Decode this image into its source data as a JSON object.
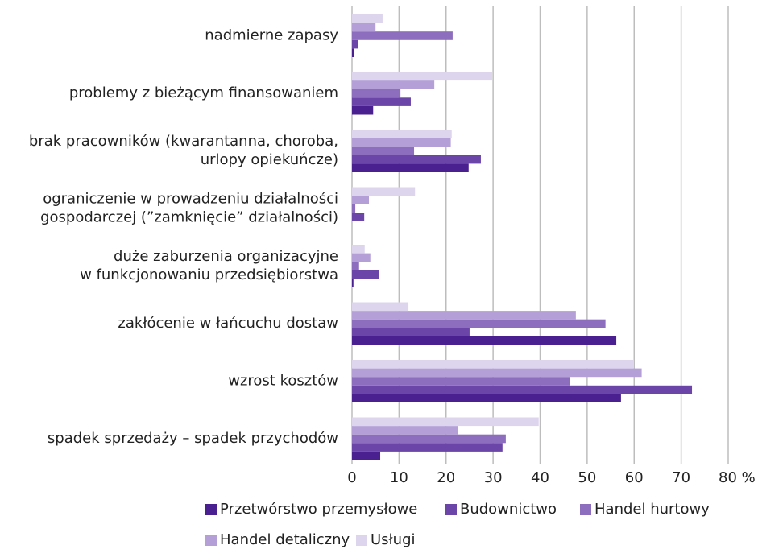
{
  "chart_data": {
    "type": "barh",
    "categories": [
      "nadmierne zapasy",
      "problemy z bieżącym finansowaniem",
      "brak pracowników (kwarantanna, choroba,\nurlopy opiekuńcze)",
      "ograniczenie w prowadzeniu działalności\ngospodarczej (”zamknięcie” działalności)",
      "duże zaburzenia organizacyjne\nw funkcjonowaniu przedsiębiorstwa",
      "zakłócenie w łańcuchu dostaw",
      "wzrost kosztów",
      "spadek sprzedaży – spadek przychodów"
    ],
    "series": [
      {
        "name": "Przetwórstwo przemysłowe",
        "color": "#4a1f8f",
        "values": [
          0.5,
          4.5,
          24.8,
          0,
          0.3,
          56.2,
          57.2,
          6
        ]
      },
      {
        "name": "Budownictwo",
        "color": "#6b45a8",
        "values": [
          1.2,
          12.5,
          27.4,
          2.6,
          5.8,
          25,
          72.3,
          32
        ]
      },
      {
        "name": "Handel hurtowy",
        "color": "#8d6dbe",
        "values": [
          21.4,
          10.3,
          13.2,
          0.7,
          1.5,
          53.9,
          46.4,
          32.7
        ]
      },
      {
        "name": "Handel detaliczny",
        "color": "#b4a0d7",
        "values": [
          5,
          17.5,
          21,
          3.6,
          3.9,
          47.6,
          61.6,
          22.6
        ]
      },
      {
        "name": "Usługi",
        "color": "#ddd5ee",
        "values": [
          6.5,
          29.8,
          21.2,
          13.4,
          2.7,
          12,
          59.8,
          39.7
        ]
      }
    ],
    "xlim": [
      0,
      80
    ],
    "xticks": [
      0,
      10,
      20,
      30,
      40,
      50,
      60,
      70,
      {
        "value": 80,
        "label": "80 %"
      }
    ],
    "grid": true
  }
}
